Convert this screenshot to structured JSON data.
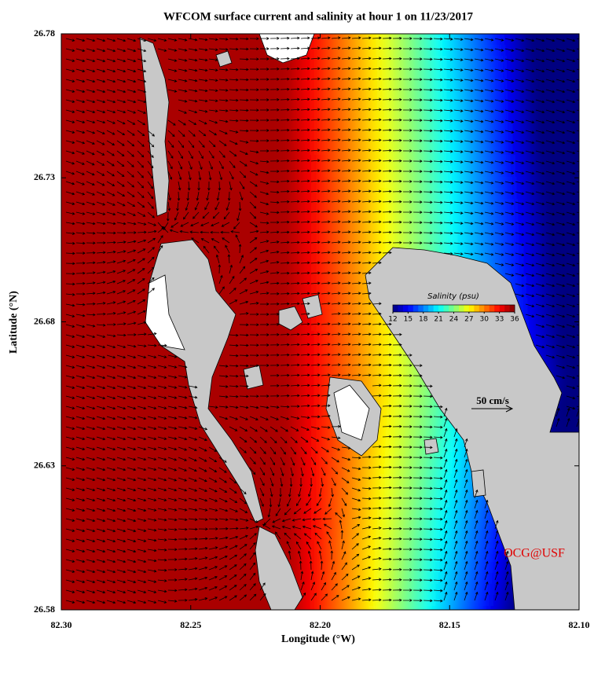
{
  "chart_data": {
    "type": "map",
    "title": "WFCOM surface current and salinity at hour 1 on 11/23/2017",
    "xlabel": "Longitude (°W)",
    "ylabel": "Latitude (°N)",
    "xlim": [
      82.3,
      82.1
    ],
    "ylim": [
      26.58,
      26.78
    ],
    "xticks": [
      {
        "value": 82.3,
        "label": "82.30"
      },
      82.25,
      {
        "value": 82.2,
        "label": "82.20"
      },
      82.15,
      {
        "value": 82.1,
        "label": "82.10"
      }
    ],
    "yticks": [
      26.58,
      26.63,
      26.68,
      26.73,
      26.78
    ],
    "colorbar": {
      "title": "Salinity (psu)",
      "lim": [
        12,
        36
      ],
      "ticks": [
        12,
        15,
        18,
        21,
        24,
        27,
        30,
        33,
        36
      ]
    },
    "scale_label": "50 cm/s",
    "credit": "OCG@USF"
  }
}
